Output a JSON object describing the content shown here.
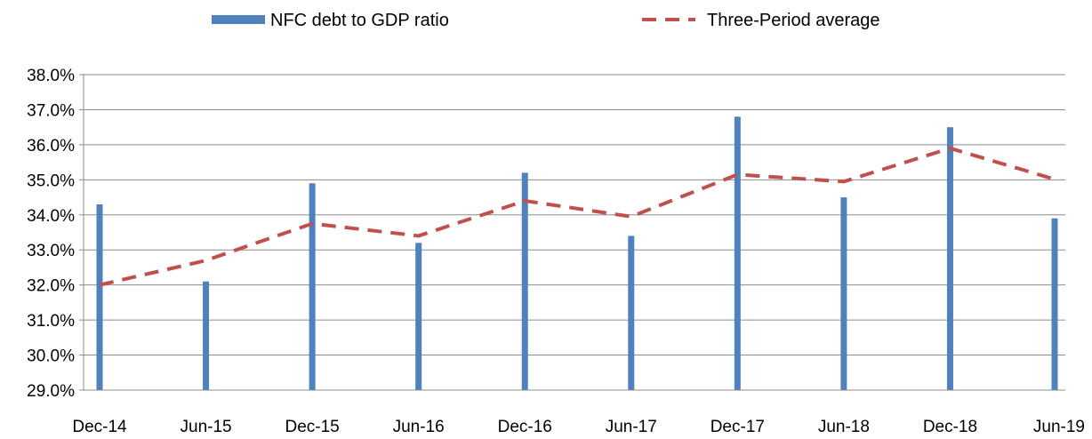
{
  "chart_data": {
    "type": "bar",
    "categories": [
      "Dec-14",
      "Jun-15",
      "Dec-15",
      "Jun-16",
      "Dec-16",
      "Jun-17",
      "Dec-17",
      "Jun-18",
      "Dec-18",
      "Jun-19"
    ],
    "series": [
      {
        "name": "NFC debt to GDP ratio",
        "kind": "bar",
        "color": "#4f81bd",
        "values": [
          34.3,
          32.1,
          34.9,
          33.2,
          35.2,
          33.4,
          36.8,
          34.5,
          36.5,
          33.9
        ]
      },
      {
        "name": "Three-Period average",
        "kind": "line",
        "style": "dashed",
        "color": "#c0504d",
        "values": [
          32.0,
          32.7,
          33.75,
          33.4,
          34.4,
          33.95,
          35.15,
          34.95,
          35.9,
          35.0
        ]
      }
    ],
    "ylim": [
      29.0,
      38.0
    ],
    "yticks": [
      "29.0%",
      "30.0%",
      "31.0%",
      "32.0%",
      "33.0%",
      "34.0%",
      "35.0%",
      "36.0%",
      "37.0%",
      "38.0%"
    ],
    "grid": true,
    "legend_position": "top"
  }
}
